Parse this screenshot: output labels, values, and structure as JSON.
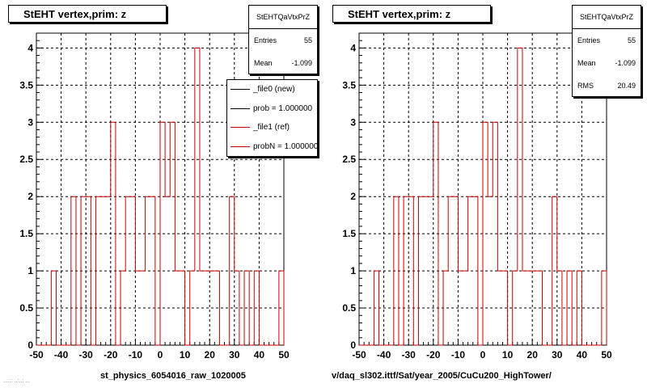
{
  "chart_data": [
    {
      "type": "histogram",
      "title": "StEHT  vertex,prim: z",
      "stats": {
        "name": "StEHTQaVtxPrZ",
        "entries_label": "Entries",
        "entries": "55",
        "mean_label": "Mean",
        "mean": "-1.099"
      },
      "legend": [
        {
          "label": "_file0 (new)",
          "color": "#000000"
        },
        {
          "label": "prob = 1.000000",
          "color": "#000000"
        },
        {
          "label": "_file1 (ref)",
          "color": "#cc0000"
        },
        {
          "label": "probN = 1.000000",
          "color": "#cc0000"
        }
      ],
      "xlim": [
        -50,
        50
      ],
      "ylim": [
        0,
        4.2
      ],
      "x_ticks": [
        "-50",
        "-40",
        "-30",
        "-20",
        "-10",
        "0",
        "10",
        "20",
        "30",
        "40",
        "50"
      ],
      "y_ticks": [
        "0",
        "0.5",
        "1",
        "1.5",
        "2",
        "2.5",
        "3",
        "3.5",
        "4"
      ],
      "bin_edges": [
        -50,
        -48,
        -46,
        -44,
        -42,
        -40,
        -38,
        -36,
        -34,
        -32,
        -30,
        -28,
        -26,
        -24,
        -22,
        -20,
        -18,
        -16,
        -14,
        -12,
        -10,
        -8,
        -6,
        -4,
        -2,
        0,
        2,
        4,
        6,
        8,
        10,
        12,
        14,
        16,
        18,
        20,
        22,
        24,
        26,
        28,
        30,
        32,
        34,
        36,
        38,
        40,
        42,
        44,
        46,
        48,
        50
      ],
      "values": [
        0,
        0,
        0,
        1,
        0,
        0,
        0,
        2,
        0,
        2,
        2,
        0,
        2,
        2,
        2,
        3,
        0,
        1,
        2,
        2,
        1,
        1,
        2,
        2,
        0,
        3,
        2,
        3,
        1,
        1,
        0,
        1,
        4,
        1,
        1,
        1,
        1,
        0,
        0,
        2,
        1,
        0,
        1,
        0,
        1,
        0,
        0,
        0,
        0,
        1
      ],
      "grid": true,
      "line_color": "#cc0000",
      "xlabel": "st_physics_6054016_raw_1020005"
    },
    {
      "type": "histogram",
      "title": "StEHT  vertex,prim: z",
      "stats": {
        "name": "StEHTQaVtxPrZ",
        "entries_label": "Entries",
        "entries": "55",
        "mean_label": "Mean",
        "mean": "-1.099",
        "rms_label": "RMS",
        "rms": "20.49"
      },
      "xlim": [
        -50,
        50
      ],
      "ylim": [
        0,
        4.2
      ],
      "x_ticks": [
        "-50",
        "-40",
        "-30",
        "-20",
        "-10",
        "0",
        "10",
        "20",
        "30",
        "40",
        "50"
      ],
      "y_ticks": [
        "0",
        "0.5",
        "1",
        "1.5",
        "2",
        "2.5",
        "3",
        "3.5",
        "4"
      ],
      "bin_edges": [
        -50,
        -48,
        -46,
        -44,
        -42,
        -40,
        -38,
        -36,
        -34,
        -32,
        -30,
        -28,
        -26,
        -24,
        -22,
        -20,
        -18,
        -16,
        -14,
        -12,
        -10,
        -8,
        -6,
        -4,
        -2,
        0,
        2,
        4,
        6,
        8,
        10,
        12,
        14,
        16,
        18,
        20,
        22,
        24,
        26,
        28,
        30,
        32,
        34,
        36,
        38,
        40,
        42,
        44,
        46,
        48,
        50
      ],
      "values": [
        0,
        0,
        0,
        1,
        0,
        0,
        0,
        2,
        0,
        2,
        2,
        0,
        2,
        2,
        2,
        3,
        0,
        1,
        2,
        2,
        1,
        1,
        2,
        2,
        0,
        3,
        2,
        3,
        1,
        1,
        0,
        1,
        4,
        1,
        1,
        1,
        1,
        0,
        0,
        2,
        1,
        0,
        1,
        0,
        1,
        0,
        0,
        0,
        0,
        1
      ],
      "grid": true,
      "line_color": "#cc0000",
      "xlabel": "v/daq_sl302.ittf/Sat/year_2005/CuCu200_HighTower/"
    }
  ],
  "footer_faint": "...:.: ..:..: ..."
}
